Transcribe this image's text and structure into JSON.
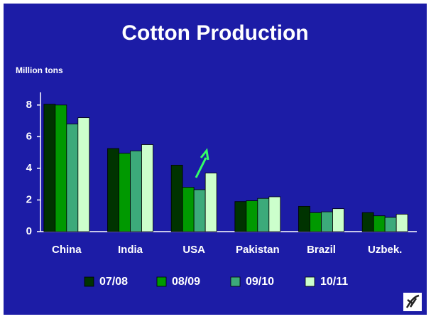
{
  "chart_data": {
    "type": "bar",
    "title": "Cotton Production",
    "y_label": "Million tons",
    "categories": [
      "China",
      "India",
      "USA",
      "Pakistan",
      "Brazil",
      "Uzbek."
    ],
    "series": [
      {
        "name": "07/08",
        "color": "#003300",
        "values": [
          8.05,
          5.25,
          4.2,
          1.9,
          1.6,
          1.2
        ]
      },
      {
        "name": "08/09",
        "color": "#009900",
        "values": [
          8.0,
          4.95,
          2.8,
          1.95,
          1.2,
          1.0
        ]
      },
      {
        "name": "09/10",
        "color": "#3caa7a",
        "values": [
          6.8,
          5.1,
          2.65,
          2.1,
          1.25,
          0.9
        ]
      },
      {
        "name": "10/11",
        "color": "#ccffcc",
        "values": [
          7.2,
          5.5,
          3.7,
          2.2,
          1.45,
          1.1
        ]
      }
    ],
    "ylim": [
      0,
      8.8
    ],
    "yticks": [
      0,
      2,
      4,
      6,
      8
    ],
    "grid": false,
    "legend": "bottom"
  }
}
